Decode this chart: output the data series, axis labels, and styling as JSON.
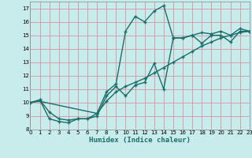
{
  "xlabel": "Humidex (Indice chaleur)",
  "background_color": "#c8ecec",
  "grid_color": "#d4a0a8",
  "line_color": "#1a6e6a",
  "xlim": [
    0,
    23
  ],
  "ylim": [
    8,
    17.5
  ],
  "xticks": [
    0,
    1,
    2,
    3,
    4,
    5,
    6,
    7,
    8,
    9,
    10,
    11,
    12,
    13,
    14,
    15,
    16,
    17,
    18,
    19,
    20,
    21,
    22,
    23
  ],
  "yticks": [
    8,
    9,
    10,
    11,
    12,
    13,
    14,
    15,
    16,
    17
  ],
  "curve1_x": [
    0,
    1,
    2,
    3,
    4,
    5,
    6,
    7,
    8,
    9,
    10,
    11,
    12,
    13,
    14,
    15,
    16,
    17,
    18,
    19,
    20,
    21,
    22,
    23
  ],
  "curve1_y": [
    10.0,
    10.2,
    8.8,
    8.6,
    8.5,
    8.8,
    8.8,
    9.0,
    10.5,
    11.2,
    10.5,
    11.3,
    11.5,
    12.9,
    11.0,
    14.8,
    14.8,
    15.0,
    14.4,
    15.0,
    15.0,
    14.5,
    15.3,
    15.3
  ],
  "curve2_x": [
    0,
    1,
    2,
    3,
    4,
    5,
    6,
    7,
    8,
    9,
    10,
    11,
    12,
    13,
    14,
    15,
    16,
    17,
    18,
    19,
    20,
    21,
    22,
    23
  ],
  "curve2_y": [
    10.0,
    10.2,
    9.3,
    8.8,
    8.7,
    8.8,
    8.8,
    9.2,
    10.8,
    11.4,
    15.3,
    16.4,
    16.0,
    16.8,
    17.2,
    14.8,
    14.8,
    15.0,
    15.2,
    15.1,
    15.3,
    15.0,
    15.5,
    15.3
  ],
  "curve3_x": [
    0,
    1,
    7,
    8,
    9,
    10,
    11,
    12,
    13,
    14,
    15,
    16,
    17,
    18,
    19,
    20,
    21,
    22,
    23
  ],
  "curve3_y": [
    10.0,
    10.1,
    9.2,
    10.1,
    10.8,
    11.2,
    11.5,
    11.8,
    12.2,
    12.6,
    13.0,
    13.4,
    13.8,
    14.2,
    14.5,
    14.8,
    15.0,
    15.2,
    15.3
  ],
  "marker_size": 2,
  "line_width": 1.0
}
